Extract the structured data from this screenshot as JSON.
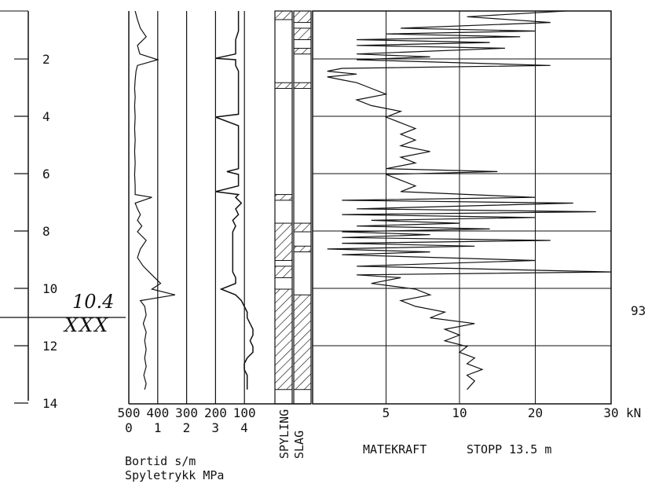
{
  "chart_data": {
    "type": "line",
    "depth_axis": {
      "ticks": [
        "2",
        "4",
        "6",
        "8",
        "10",
        "12",
        "14"
      ],
      "range": [
        0.3,
        14
      ],
      "handwritten_mark": "10.4",
      "stop_marks": "XXX"
    },
    "bortid_axis": {
      "ticks": [
        "500",
        "400",
        "300",
        "200",
        "100"
      ],
      "range": [
        500,
        0
      ],
      "label": "Bortid s/m"
    },
    "spyletrykk_axis": {
      "ticks": [
        "0",
        "1",
        "2",
        "3",
        "4"
      ],
      "range": [
        0,
        5
      ],
      "label": "Spyletrykk MPa"
    },
    "spyling_label": "SPYLING",
    "slag_label": "SLAG",
    "matekraft_axis": {
      "ticks": [
        "5",
        "10",
        "20",
        "30"
      ],
      "tick_values": [
        5,
        10,
        20,
        30
      ],
      "unit": "kN",
      "label": "MATEKRAFT",
      "stop_note": "STOPP 13.5 m"
    },
    "side_value": "93",
    "series": [
      {
        "name": "Bortid",
        "depth": [
          0.3,
          0.6,
          0.9,
          1.2,
          1.5,
          1.8,
          2.0,
          2.2,
          2.4,
          2.7,
          3.0,
          3.3,
          3.6,
          4.0,
          4.4,
          4.8,
          5.2,
          5.6,
          6.0,
          6.4,
          6.7,
          6.8,
          7.0,
          7.2,
          7.4,
          7.6,
          7.8,
          8.0,
          8.3,
          8.6,
          8.9,
          9.2,
          9.5,
          9.8,
          10.0,
          10.2,
          10.4,
          10.6,
          10.9,
          11.2,
          11.5,
          11.8,
          12.1,
          12.4,
          12.7,
          13.0,
          13.3,
          13.5
        ],
        "value": [
          478,
          470,
          460,
          440,
          470,
          462,
          400,
          470,
          475,
          478,
          480,
          478,
          480,
          478,
          480,
          478,
          480,
          478,
          480,
          478,
          478,
          420,
          478,
          470,
          460,
          470,
          455,
          470,
          440,
          460,
          470,
          450,
          420,
          390,
          420,
          340,
          460,
          445,
          440,
          450,
          440,
          445,
          440,
          445,
          440,
          448,
          440,
          445
        ]
      },
      {
        "name": "Spyletrykk",
        "depth": [
          0.3,
          0.7,
          1.0,
          1.3,
          1.6,
          1.8,
          1.95,
          2.0,
          2.2,
          2.4,
          2.5,
          2.6,
          2.9,
          3.2,
          3.4,
          3.6,
          3.9,
          4.0,
          4.3,
          4.6,
          4.9,
          5.2,
          5.4,
          5.6,
          5.8,
          5.9,
          6.0,
          6.2,
          6.4,
          6.6,
          6.7,
          6.8,
          7.0,
          7.2,
          7.4,
          7.6,
          7.8,
          8.0,
          8.2,
          8.4,
          8.6,
          8.8,
          9.0,
          9.2,
          9.4,
          9.6,
          9.8,
          10.0,
          10.2,
          10.4,
          10.6,
          10.8,
          11.0,
          11.2,
          11.4,
          11.6,
          11.8,
          12.0,
          12.2,
          12.4,
          12.6,
          12.8,
          13.0,
          13.2,
          13.5
        ],
        "value": [
          3.8,
          3.8,
          3.8,
          3.7,
          3.7,
          3.7,
          3.0,
          3.7,
          3.7,
          3.8,
          3.8,
          3.8,
          3.8,
          3.8,
          3.8,
          3.8,
          3.8,
          3.0,
          3.8,
          3.8,
          3.8,
          3.8,
          3.8,
          3.8,
          3.8,
          3.4,
          3.8,
          3.8,
          3.8,
          3.0,
          3.8,
          3.7,
          3.9,
          3.7,
          3.8,
          3.6,
          3.7,
          3.6,
          3.6,
          3.6,
          3.6,
          3.6,
          3.6,
          3.6,
          3.6,
          3.7,
          3.7,
          3.2,
          3.7,
          3.9,
          4.0,
          4.1,
          4.1,
          4.2,
          4.3,
          4.3,
          4.2,
          4.3,
          4.3,
          4.1,
          4.0,
          4.0,
          4.1,
          4.1,
          4.1
        ]
      },
      {
        "name": "Matekraft",
        "depth": [
          0.3,
          0.5,
          0.7,
          0.9,
          1.0,
          1.1,
          1.2,
          1.3,
          1.4,
          1.5,
          1.6,
          1.8,
          1.9,
          2.0,
          2.2,
          2.3,
          2.4,
          2.5,
          2.6,
          2.7,
          2.8,
          3.0,
          3.2,
          3.4,
          3.6,
          3.8,
          4.0,
          4.2,
          4.4,
          4.6,
          4.8,
          5.0,
          5.2,
          5.4,
          5.6,
          5.8,
          5.9,
          6.0,
          6.2,
          6.4,
          6.6,
          6.8,
          6.9,
          7.0,
          7.2,
          7.3,
          7.4,
          7.5,
          7.6,
          7.7,
          7.8,
          7.9,
          8.0,
          8.1,
          8.2,
          8.3,
          8.4,
          8.5,
          8.6,
          8.7,
          8.8,
          9.0,
          9.2,
          9.4,
          9.5,
          9.6,
          9.8,
          10.0,
          10.2,
          10.4,
          10.6,
          10.8,
          11.0,
          11.2,
          11.4,
          11.6,
          11.8,
          12.0,
          12.2,
          12.4,
          12.6,
          12.8,
          13.0,
          13.2,
          13.5
        ],
        "value": [
          24,
          11,
          22,
          6,
          20,
          5,
          18,
          3,
          14,
          3,
          16,
          3,
          8,
          3,
          22,
          2,
          1,
          3,
          1,
          2,
          3,
          4,
          5,
          3,
          4,
          6,
          5,
          6,
          7,
          6,
          7,
          6,
          8,
          6,
          7,
          5,
          15,
          5,
          6,
          7,
          6,
          20,
          2,
          25,
          3,
          28,
          2,
          20,
          4,
          10,
          3,
          14,
          2,
          8,
          2,
          22,
          2,
          12,
          1,
          8,
          2,
          20,
          3,
          30,
          3,
          6,
          4,
          7,
          8,
          6,
          7,
          9,
          8,
          12,
          9,
          10,
          9,
          11,
          10,
          12,
          11,
          13,
          11,
          12,
          11
        ]
      }
    ],
    "spyling_bands": [
      [
        0.3,
        0.6
      ],
      [
        2.8,
        3.0
      ],
      [
        6.7,
        6.9
      ],
      [
        7.7,
        9.0
      ],
      [
        9.2,
        9.6
      ],
      [
        10.0,
        13.5
      ]
    ],
    "slag_bands": [
      [
        0.3,
        0.7
      ],
      [
        0.9,
        1.3
      ],
      [
        1.6,
        1.8
      ],
      [
        2.8,
        3.0
      ],
      [
        7.7,
        8.0
      ],
      [
        8.5,
        8.7
      ],
      [
        10.2,
        13.5
      ]
    ]
  }
}
